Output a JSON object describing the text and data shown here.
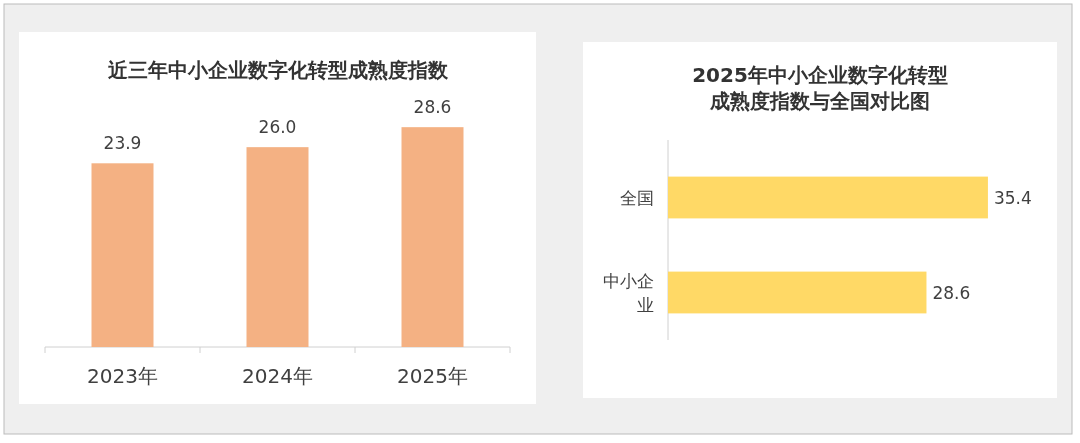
{
  "chart_data": [
    {
      "type": "bar",
      "title": "近三年中小企业数字化转型成熟度指数",
      "categories": [
        "2023年",
        "2024年",
        "2025年"
      ],
      "values": [
        23.9,
        26.0,
        28.6
      ],
      "color": "#f4b183",
      "value_labels": [
        "23.9",
        "26.0",
        "28.6"
      ]
    },
    {
      "type": "bar",
      "orientation": "horizontal",
      "title": "2025年中小企业数字化转型成熟度指数与全国对比图",
      "categories": [
        "全国",
        "中小企业"
      ],
      "values": [
        35.4,
        28.6
      ],
      "color": "#ffd966",
      "value_labels": [
        "35.4",
        "28.6"
      ]
    }
  ]
}
